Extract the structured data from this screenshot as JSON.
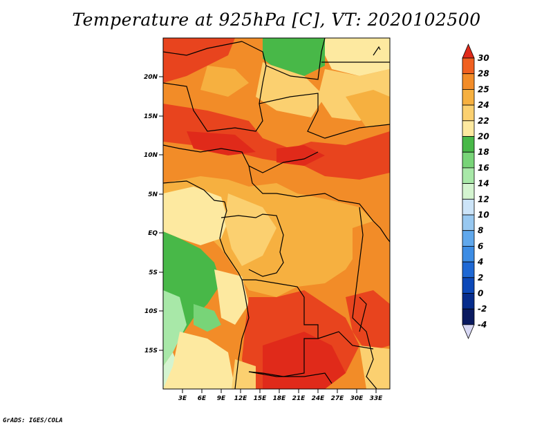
{
  "title": "Temperature at 925hPa [C], VT: 2020102500",
  "footer": "GrADS: IGES/COLA",
  "map": {
    "lat_labels": [
      "20N",
      "15N",
      "10N",
      "5N",
      "EQ",
      "5S",
      "10S",
      "15S"
    ],
    "lon_labels": [
      "3E",
      "6E",
      "9E",
      "12E",
      "15E",
      "18E",
      "21E",
      "24E",
      "27E",
      "30E",
      "33E"
    ]
  },
  "colorbar": {
    "labels": [
      "30",
      "28",
      "25",
      "24",
      "22",
      "20",
      "18",
      "16",
      "14",
      "12",
      "10",
      "8",
      "6",
      "4",
      "2",
      "0",
      "-2",
      "-4"
    ],
    "colors": [
      "#e02a1a",
      "#f06020",
      "#f28c28",
      "#f6b040",
      "#fbd070",
      "#fde9a0",
      "#48b848",
      "#78d478",
      "#a8e8a8",
      "#d4f4d0",
      "#cce4f8",
      "#98c8f0",
      "#60a8ec",
      "#3c8ce4",
      "#1e68d4",
      "#0c48b8",
      "#062c8c",
      "#0a1a60",
      "#d8d8f4"
    ]
  }
}
